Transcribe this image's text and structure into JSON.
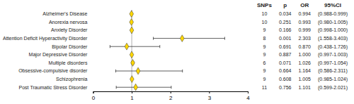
{
  "chart_data": {
    "type": "forest",
    "categories": [
      "Alzheimer's Disease",
      "Anorexia nervosa",
      "Anxiety Disorder",
      "Attention Deficit Hyperactivity Disorder",
      "Bipolar Disorder",
      "Major Depressive Disorder",
      "Multiple disorders",
      "Obsessive-compulsive disorder",
      "Schizophrenia",
      "Post Traumatic Stress Disorder"
    ],
    "values": [
      0.994,
      0.993,
      0.999,
      2.303,
      0.87,
      1.0,
      1.026,
      1.164,
      1.005,
      1.101
    ],
    "ci_lower": [
      0.988,
      0.98,
      0.998,
      1.558,
      0.438,
      0.997,
      0.997,
      0.586,
      0.985,
      0.599
    ],
    "ci_upper": [
      0.999,
      1.005,
      1.0,
      3.403,
      1.726,
      1.003,
      1.054,
      2.311,
      1.024,
      2.021
    ],
    "reference_line": 1,
    "color": "#FFD700",
    "xlim": [
      0,
      4
    ],
    "xticks": [
      0,
      1,
      2,
      3,
      4
    ],
    "columns": [
      {
        "name": "SNPs",
        "values": [
          10,
          10,
          9,
          8,
          9,
          9,
          6,
          9,
          9,
          11
        ]
      },
      {
        "name": "p",
        "values": [
          "0.034",
          "0.251",
          "0.166",
          "0.001",
          "0.691",
          "0.887",
          "0.071",
          "0.664",
          "0.608",
          "0.756"
        ]
      },
      {
        "name": "OR",
        "values": [
          "0.994",
          "0.993",
          "0.999",
          "2.303",
          "0.870",
          "1.000",
          "1.026",
          "1.164",
          "1.005",
          "1.101"
        ]
      },
      {
        "name": "95%CI",
        "values": [
          "(0.988-0.999)",
          "(0.980-1.005)",
          "(0.998-1.000)",
          "(1.558-3.403)",
          "(0.438-1.726)",
          "(0.997-1.003)",
          "(0.997-1.054)",
          "(0.586-2.311)",
          "(0.985-1.024)",
          "(0.599-2.021)"
        ]
      }
    ]
  }
}
